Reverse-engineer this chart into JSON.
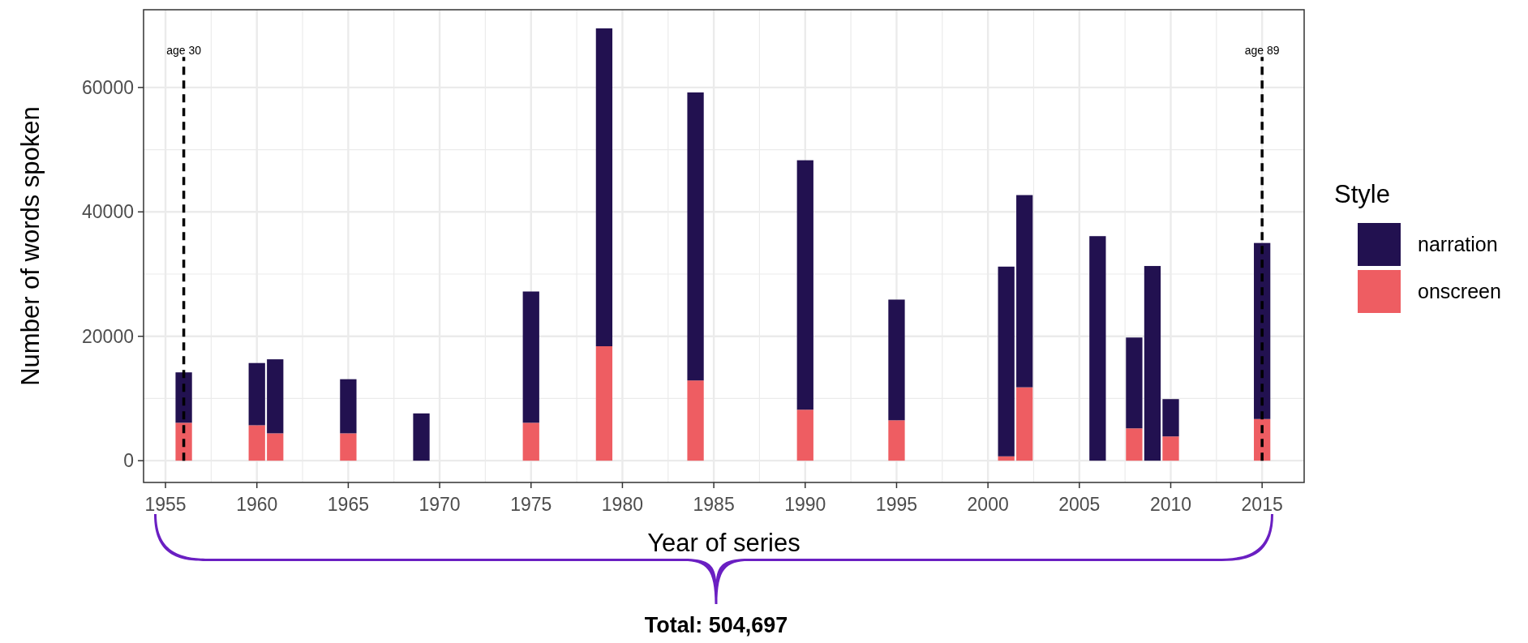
{
  "chart_data": {
    "type": "bar",
    "stacked": true,
    "xlabel": "Year of series",
    "ylabel": "Number of words spoken",
    "legend_title": "Style",
    "x": [
      1956,
      1960,
      1961,
      1965,
      1969,
      1975,
      1979,
      1984,
      1990,
      1995,
      2001,
      2002,
      2006,
      2008,
      2009,
      2010,
      2015
    ],
    "series": [
      {
        "name": "onscreen",
        "color": "#ee5d62",
        "values": [
          6100,
          5700,
          4400,
          4400,
          0,
          6100,
          18400,
          12900,
          8200,
          6500,
          700,
          11800,
          0,
          5200,
          0,
          3900,
          6700
        ]
      },
      {
        "name": "narration",
        "color": "#221150",
        "values": [
          8100,
          10000,
          11900,
          8700,
          7600,
          21100,
          51100,
          46300,
          40100,
          19400,
          30500,
          30900,
          36100,
          14600,
          31300,
          6000,
          28300
        ]
      }
    ],
    "xlim": [
      1953.8,
      2017.3
    ],
    "xticks": [
      1955,
      1960,
      1965,
      1970,
      1975,
      1980,
      1985,
      1990,
      1995,
      2000,
      2005,
      2010,
      2015
    ],
    "ylim": [
      -3500,
      72500
    ],
    "yticks": [
      0,
      20000,
      40000,
      60000
    ],
    "grid": true,
    "legend": "right",
    "ref_lines": [
      {
        "axis": "x",
        "value": 1956,
        "label": "age 30",
        "line_style": "dashed",
        "color": "#000000"
      },
      {
        "axis": "x",
        "value": 2015,
        "label": "age 89",
        "line_style": "dashed",
        "color": "#000000"
      }
    ],
    "annotations": [
      "Total: 504,697"
    ]
  }
}
